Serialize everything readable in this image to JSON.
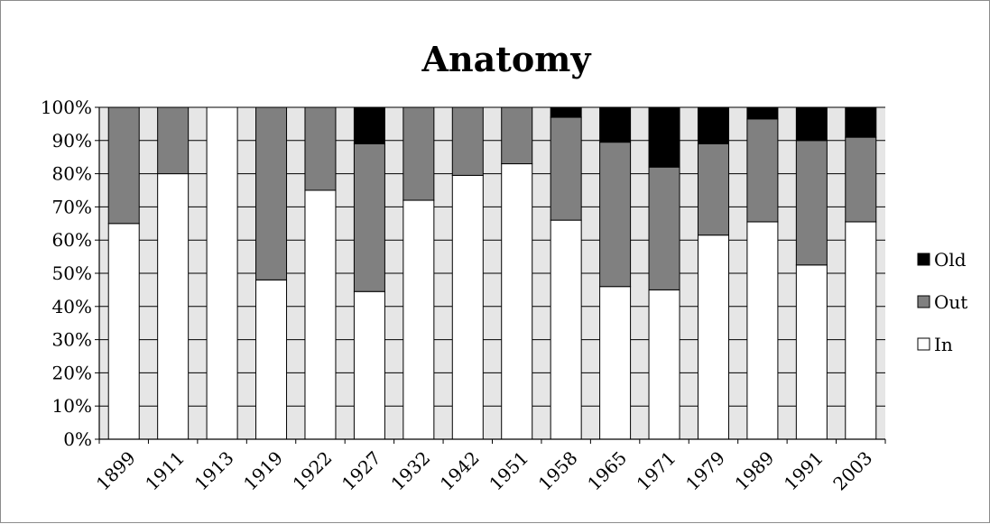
{
  "chart_data": {
    "type": "bar",
    "stacked": "percent",
    "title": "Anatomy",
    "xlabel": "",
    "ylabel": "",
    "categories": [
      "1899",
      "1911",
      "1913",
      "1919",
      "1922",
      "1927",
      "1932",
      "1942",
      "1951",
      "1958",
      "1965",
      "1971",
      "1979",
      "1989",
      "1991",
      "2003"
    ],
    "series": [
      {
        "name": "In",
        "color": "#ffffff",
        "values": [
          65,
          80,
          100,
          48,
          75,
          44.5,
          72,
          79.5,
          83,
          66,
          46,
          45,
          61.5,
          65.5,
          52.5,
          65.5
        ]
      },
      {
        "name": "Out",
        "color": "#808080",
        "values": [
          35,
          20,
          0,
          52,
          25,
          44.5,
          28,
          20.5,
          17,
          31,
          43.5,
          37,
          27.5,
          31,
          37.5,
          25.5
        ]
      },
      {
        "name": "Old",
        "color": "#000000",
        "values": [
          0,
          0,
          0,
          0,
          0,
          11,
          0,
          0,
          0,
          3,
          10.5,
          18,
          11,
          3.5,
          10,
          9
        ]
      }
    ],
    "ylim": [
      0,
      100
    ],
    "yticks": [
      "0%",
      "10%",
      "20%",
      "30%",
      "40%",
      "50%",
      "60%",
      "70%",
      "80%",
      "90%",
      "100%"
    ],
    "grid": true,
    "legend_position": "right",
    "legend_order": [
      "Old",
      "Out",
      "In"
    ],
    "plot_background": "#e6e6e6"
  }
}
